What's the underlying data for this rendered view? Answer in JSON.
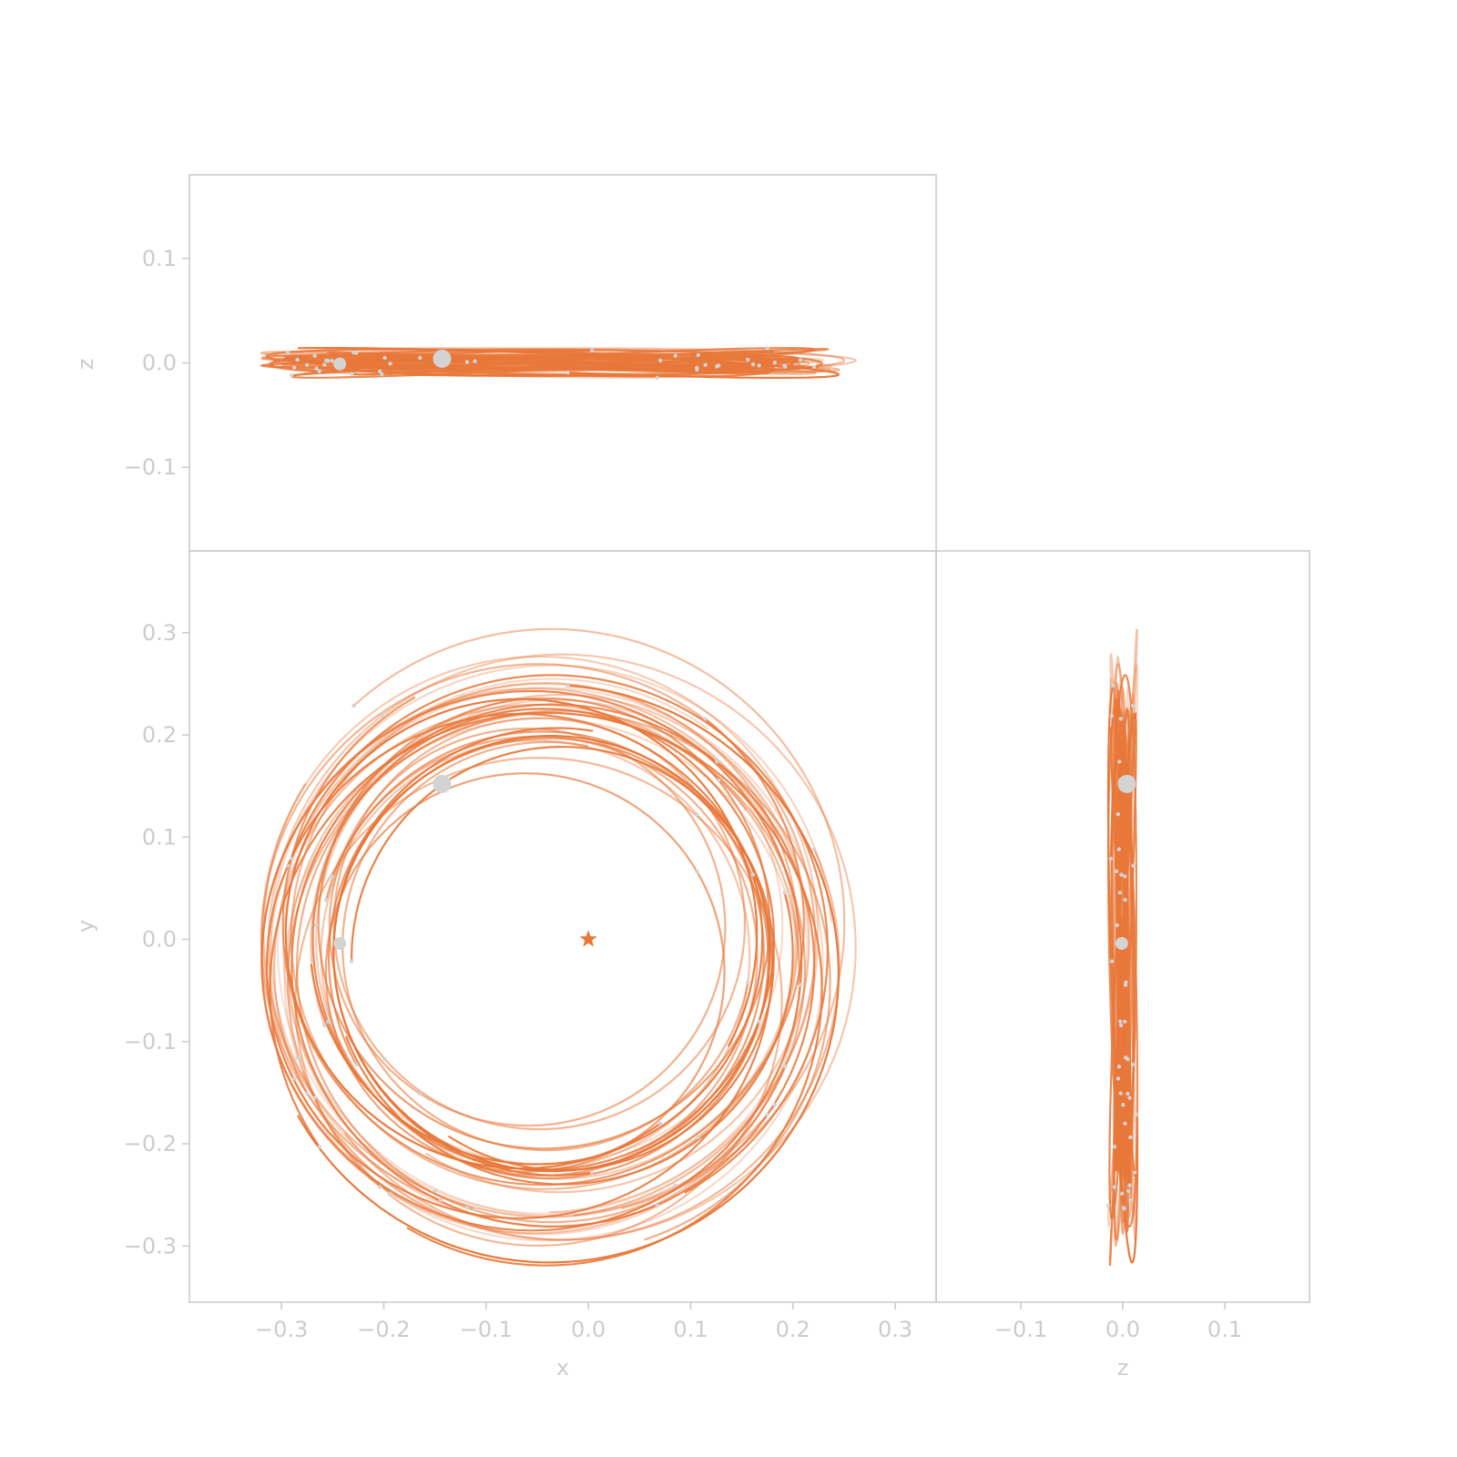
{
  "chart_data": [
    {
      "panel": "top",
      "type": "line",
      "xlabel": "",
      "ylabel": "z",
      "xlim": [
        -0.39,
        0.34
      ],
      "ylim": [
        -0.18,
        0.18
      ],
      "yticks": [
        -0.1,
        0.0,
        0.1
      ],
      "ytick_labels": [
        "−0.1",
        "0.0",
        "0.1"
      ],
      "grid": false
    },
    {
      "panel": "main",
      "type": "line",
      "xlabel": "x",
      "ylabel": "y",
      "xlim": [
        -0.39,
        0.34
      ],
      "ylim": [
        -0.355,
        0.38
      ],
      "xticks": [
        -0.3,
        -0.2,
        -0.1,
        0.0,
        0.1,
        0.2,
        0.3
      ],
      "xtick_labels": [
        "−0.3",
        "−0.2",
        "−0.1",
        "0.0",
        "0.1",
        "0.2",
        "0.3"
      ],
      "yticks": [
        -0.3,
        -0.2,
        -0.1,
        0.0,
        0.1,
        0.2,
        0.3
      ],
      "ytick_labels": [
        "−0.3",
        "−0.2",
        "−0.1",
        "0.0",
        "0.1",
        "0.2",
        "0.3"
      ],
      "grid": false,
      "star": {
        "x": 0.0,
        "y": 0.0
      }
    },
    {
      "panel": "side",
      "type": "line",
      "xlabel": "z",
      "ylabel": "",
      "xlim": [
        -0.183,
        0.183
      ],
      "ylim": [
        -0.355,
        0.38
      ],
      "xticks": [
        -0.1,
        0.0,
        0.1
      ],
      "xtick_labels": [
        "−0.1",
        "0.0",
        "0.1"
      ],
      "grid": false
    }
  ],
  "bodies": {
    "large": [
      {
        "x": -0.143,
        "y": 0.152,
        "z": 0.004,
        "r": 10
      },
      {
        "x": -0.243,
        "y": -0.004,
        "z": -0.001,
        "r": 7
      }
    ]
  },
  "colors": {
    "orbit": "#e8783a",
    "body": "#d3d3d3",
    "axis": "#cccccc"
  }
}
